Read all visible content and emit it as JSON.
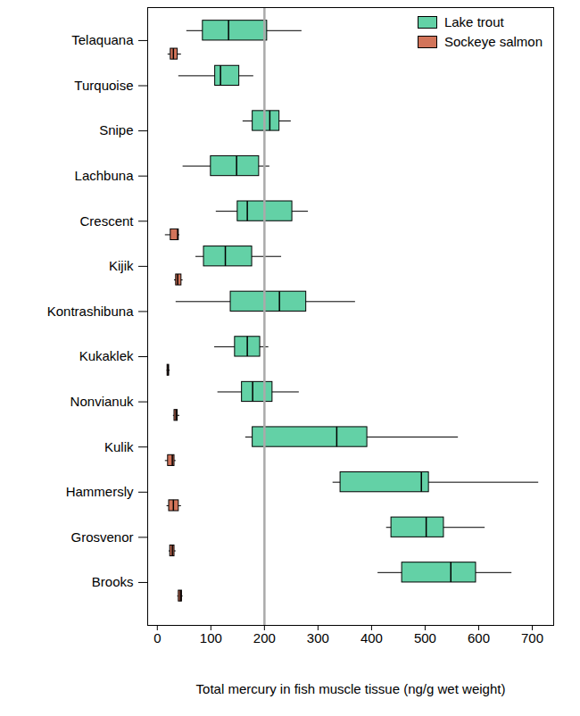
{
  "chart_data": {
    "type": "boxplot",
    "orientation": "horizontal",
    "categories": [
      "Telaquana",
      "Turquoise",
      "Snipe",
      "Lachbuna",
      "Crescent",
      "Kijik",
      "Kontrashibuna",
      "Kukaklek",
      "Nonvianuk",
      "Kulik",
      "Hammersly",
      "Grosvenor",
      "Brooks"
    ],
    "series": [
      {
        "name": "Lake trout",
        "color": "#63d1a6",
        "values": [
          {
            "low": 55,
            "q1": 85,
            "median": 133,
            "q3": 205,
            "high": 270
          },
          {
            "low": 40,
            "q1": 108,
            "median": 118,
            "q3": 153,
            "high": 180
          },
          {
            "low": 160,
            "q1": 178,
            "median": 210,
            "q3": 228,
            "high": 250
          },
          {
            "low": 48,
            "q1": 100,
            "median": 148,
            "q3": 190,
            "high": 210
          },
          {
            "low": 110,
            "q1": 150,
            "median": 168,
            "q3": 252,
            "high": 282
          },
          {
            "low": 72,
            "q1": 87,
            "median": 127,
            "q3": 177,
            "high": 232
          },
          {
            "low": 35,
            "q1": 137,
            "median": 228,
            "q3": 278,
            "high": 370
          },
          {
            "low": 107,
            "q1": 145,
            "median": 168,
            "q3": 192,
            "high": 208
          },
          {
            "low": 113,
            "q1": 158,
            "median": 178,
            "q3": 215,
            "high": 265
          },
          {
            "low": 165,
            "q1": 178,
            "median": 335,
            "q3": 392,
            "high": 562
          },
          {
            "low": 328,
            "q1": 342,
            "median": 493,
            "q3": 507,
            "high": 712
          },
          {
            "low": 428,
            "q1": 437,
            "median": 502,
            "q3": 535,
            "high": 612
          },
          {
            "low": 412,
            "q1": 457,
            "median": 548,
            "q3": 595,
            "high": 662
          }
        ]
      },
      {
        "name": "Sockeye salmon",
        "color": "#d2745a",
        "values": [
          {
            "low": 20,
            "q1": 25,
            "median": 30,
            "q3": 38,
            "high": 45
          },
          null,
          null,
          null,
          {
            "low": 15,
            "q1": 25,
            "median": 38,
            "q3": 40,
            "high": 42
          },
          {
            "low": 32,
            "q1": 35,
            "median": 38,
            "q3": 45,
            "high": 48
          },
          null,
          {
            "low": 18,
            "q1": 19,
            "median": 20,
            "q3": 22,
            "high": 24
          },
          {
            "low": 30,
            "q1": 32,
            "median": 35,
            "q3": 38,
            "high": 42
          },
          {
            "low": 15,
            "q1": 20,
            "median": 28,
            "q3": 32,
            "high": 35
          },
          {
            "low": 18,
            "q1": 22,
            "median": 30,
            "q3": 40,
            "high": 45
          },
          {
            "low": 22,
            "q1": 24,
            "median": 28,
            "q3": 32,
            "high": 35
          },
          {
            "low": 38,
            "q1": 40,
            "median": 43,
            "q3": 46,
            "high": 48
          }
        ]
      }
    ],
    "reference_line": 200,
    "xlabel": "Total mercury in fish muscle tissue (ng/g wet weight)",
    "xlim": [
      -18,
      740
    ],
    "xticks": [
      0,
      100,
      200,
      300,
      400,
      500,
      600,
      700
    ],
    "legend": "top-right"
  }
}
